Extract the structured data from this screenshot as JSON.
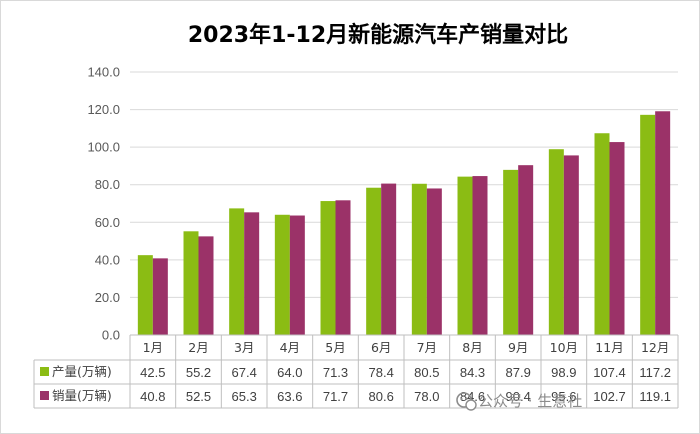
{
  "chart_data": {
    "type": "bar",
    "title": "2023年1-12月新能源汽车产销量对比",
    "categories": [
      "1月",
      "2月",
      "3月",
      "4月",
      "5月",
      "6月",
      "7月",
      "8月",
      "9月",
      "10月",
      "11月",
      "12月"
    ],
    "series": [
      {
        "name": "产量(万辆)",
        "color": "#8bbc14",
        "values": [
          42.5,
          55.2,
          67.4,
          64.0,
          71.3,
          78.4,
          80.5,
          84.3,
          87.9,
          98.9,
          107.4,
          117.2
        ],
        "labels": [
          "42.5",
          "55.2",
          "67.4",
          "64.0",
          "71.3",
          "78.4",
          "80.5",
          "84.3",
          "87.9",
          "98.9",
          "107.4",
          "117.2"
        ]
      },
      {
        "name": "销量(万辆)",
        "color": "#9b3268",
        "values": [
          40.8,
          52.5,
          65.3,
          63.6,
          71.7,
          80.6,
          78.0,
          84.6,
          90.4,
          95.6,
          102.7,
          119.1
        ],
        "labels": [
          "40.8",
          "52.5",
          "65.3",
          "63.6",
          "71.7",
          "80.6",
          "78.0",
          "84.6",
          "90.4",
          "95.6",
          "102.7",
          "119.1"
        ]
      }
    ],
    "ylim": [
      0,
      140
    ],
    "yticks": [
      0,
      20,
      40,
      60,
      80,
      100,
      120,
      140
    ],
    "ytick_labels": [
      "0.0",
      "20.0",
      "40.0",
      "60.0",
      "80.0",
      "100.0",
      "120.0",
      "140.0"
    ],
    "grid": true,
    "legend": "data-table",
    "xlabel": "",
    "ylabel": ""
  },
  "watermark": {
    "text": "公众号 · 生意社",
    "icon": "wechat-icon"
  }
}
